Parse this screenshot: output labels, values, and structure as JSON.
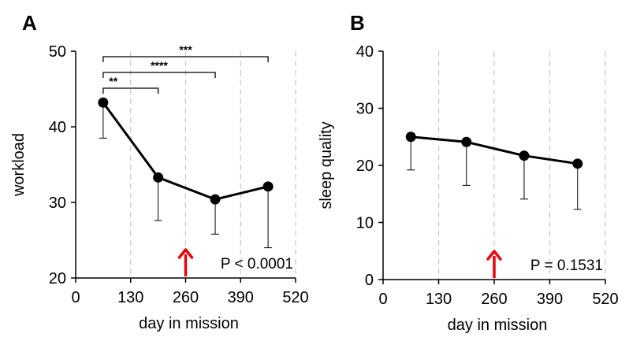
{
  "chart_data": [
    {
      "panel": "A",
      "type": "line",
      "xlabel": "day in mission",
      "ylabel": "workload",
      "xlim": [
        0,
        520
      ],
      "ylim": [
        20,
        50
      ],
      "xticks": [
        0,
        130,
        260,
        390,
        520
      ],
      "yticks": [
        20,
        30,
        40,
        50
      ],
      "grid": "vertical-dashed",
      "x": [
        65,
        195,
        330,
        455
      ],
      "y": [
        43.2,
        33.3,
        30.4,
        32.1
      ],
      "error_lower": [
        38.5,
        27.6,
        25.8,
        24.0
      ],
      "error_upper": [
        43.2,
        33.3,
        30.4,
        32.1
      ],
      "annotation": "P < 0.0001",
      "marker_day": 260,
      "significance": [
        {
          "from": 65,
          "to": 195,
          "label": "**"
        },
        {
          "from": 65,
          "to": 330,
          "label": "****"
        },
        {
          "from": 65,
          "to": 455,
          "label": "***"
        }
      ]
    },
    {
      "panel": "B",
      "type": "line",
      "xlabel": "day in mission",
      "ylabel": "sleep quality",
      "xlim": [
        0,
        520
      ],
      "ylim": [
        0,
        40
      ],
      "xticks": [
        0,
        130,
        260,
        390,
        520
      ],
      "yticks": [
        0,
        10,
        20,
        30,
        40
      ],
      "grid": "vertical-dashed",
      "x": [
        65,
        195,
        330,
        455
      ],
      "y": [
        25.0,
        24.1,
        21.7,
        20.3
      ],
      "error_lower": [
        19.2,
        16.5,
        14.1,
        12.3
      ],
      "error_upper": [
        25.0,
        24.1,
        21.7,
        20.3
      ],
      "annotation": "P = 0.1531",
      "marker_day": 260,
      "significance": []
    }
  ],
  "colors": {
    "line": "#000000",
    "grid": "#c8c8c8",
    "arrow": "#e8000b"
  }
}
